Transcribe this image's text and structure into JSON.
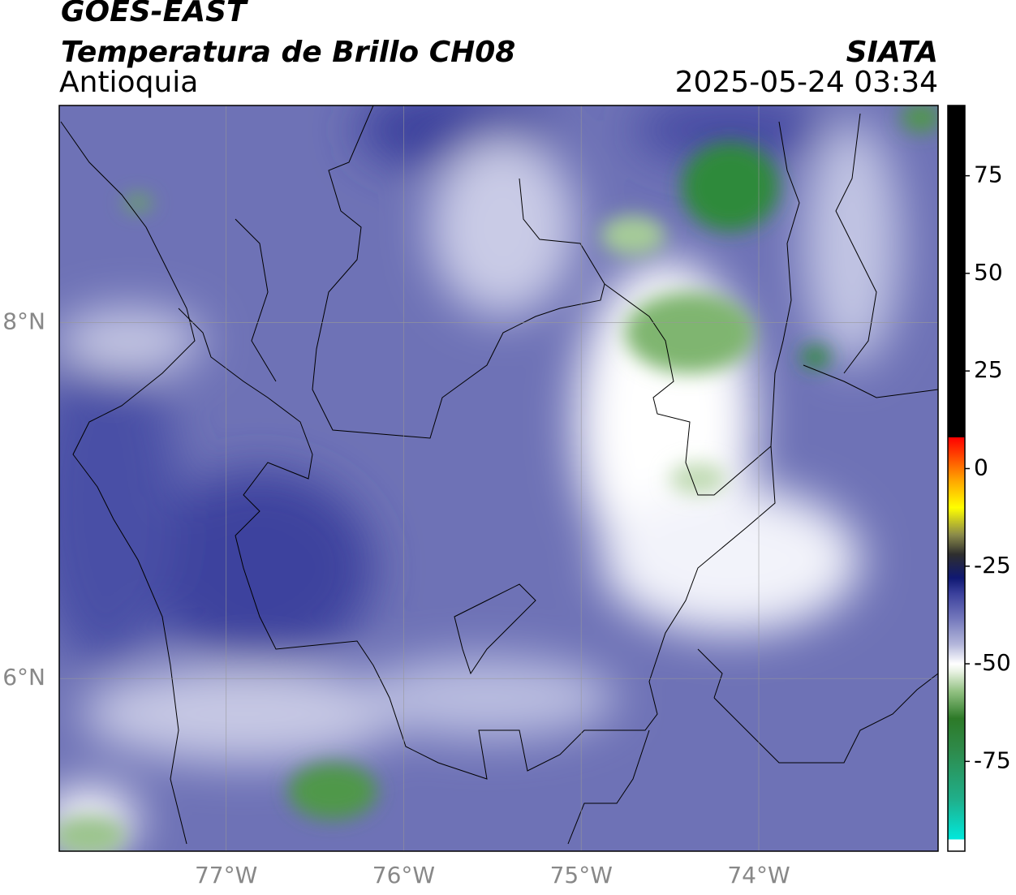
{
  "header": {
    "title": "GOES-EAST",
    "subtitle": "Temperatura de Brillo CH08",
    "region": "Antioquia",
    "source": "SIATA",
    "timestamp": "2025-05-24 03:34"
  },
  "map": {
    "lonlim": [
      -77.94,
      -72.99
    ],
    "latlim": [
      5.03,
      9.22
    ],
    "lonticks": [
      {
        "value": -77,
        "label": "77°W"
      },
      {
        "value": -76,
        "label": "76°W"
      },
      {
        "value": -75,
        "label": "75°W"
      },
      {
        "value": -74,
        "label": "74°W"
      }
    ],
    "latticks": [
      {
        "value": 8,
        "label": "8°N"
      },
      {
        "value": 6,
        "label": "6°N"
      }
    ],
    "grid": true
  },
  "colorbar": {
    "lim": [
      -98,
      93
    ],
    "ticks": [
      75,
      50,
      25,
      0,
      -25,
      -50,
      -75
    ],
    "stops": [
      {
        "value": -98,
        "color": "#ffffff"
      },
      {
        "value": -95,
        "color": "#ffffff"
      },
      {
        "value": -95,
        "color": "#00e8dc"
      },
      {
        "value": -85,
        "color": "#1fb08c"
      },
      {
        "value": -72,
        "color": "#2e8a4a"
      },
      {
        "value": -64,
        "color": "#2d7a28"
      },
      {
        "value": -57,
        "color": "#93c283"
      },
      {
        "value": -52,
        "color": "#e8f2e2"
      },
      {
        "value": -50,
        "color": "#ffffff"
      },
      {
        "value": -45,
        "color": "#b3b6da"
      },
      {
        "value": -38,
        "color": "#7074ba"
      },
      {
        "value": -32,
        "color": "#3b409c"
      },
      {
        "value": -28,
        "color": "#0f1872"
      },
      {
        "value": -22,
        "color": "#2e2e2e"
      },
      {
        "value": -17,
        "color": "#8a8a4a"
      },
      {
        "value": -10,
        "color": "#ffff00"
      },
      {
        "value": -3,
        "color": "#ffa500"
      },
      {
        "value": 4,
        "color": "#ff3a00"
      },
      {
        "value": 8,
        "color": "#ff0000"
      },
      {
        "value": 8,
        "color": "#000000"
      },
      {
        "value": 93,
        "color": "#000000"
      }
    ]
  }
}
